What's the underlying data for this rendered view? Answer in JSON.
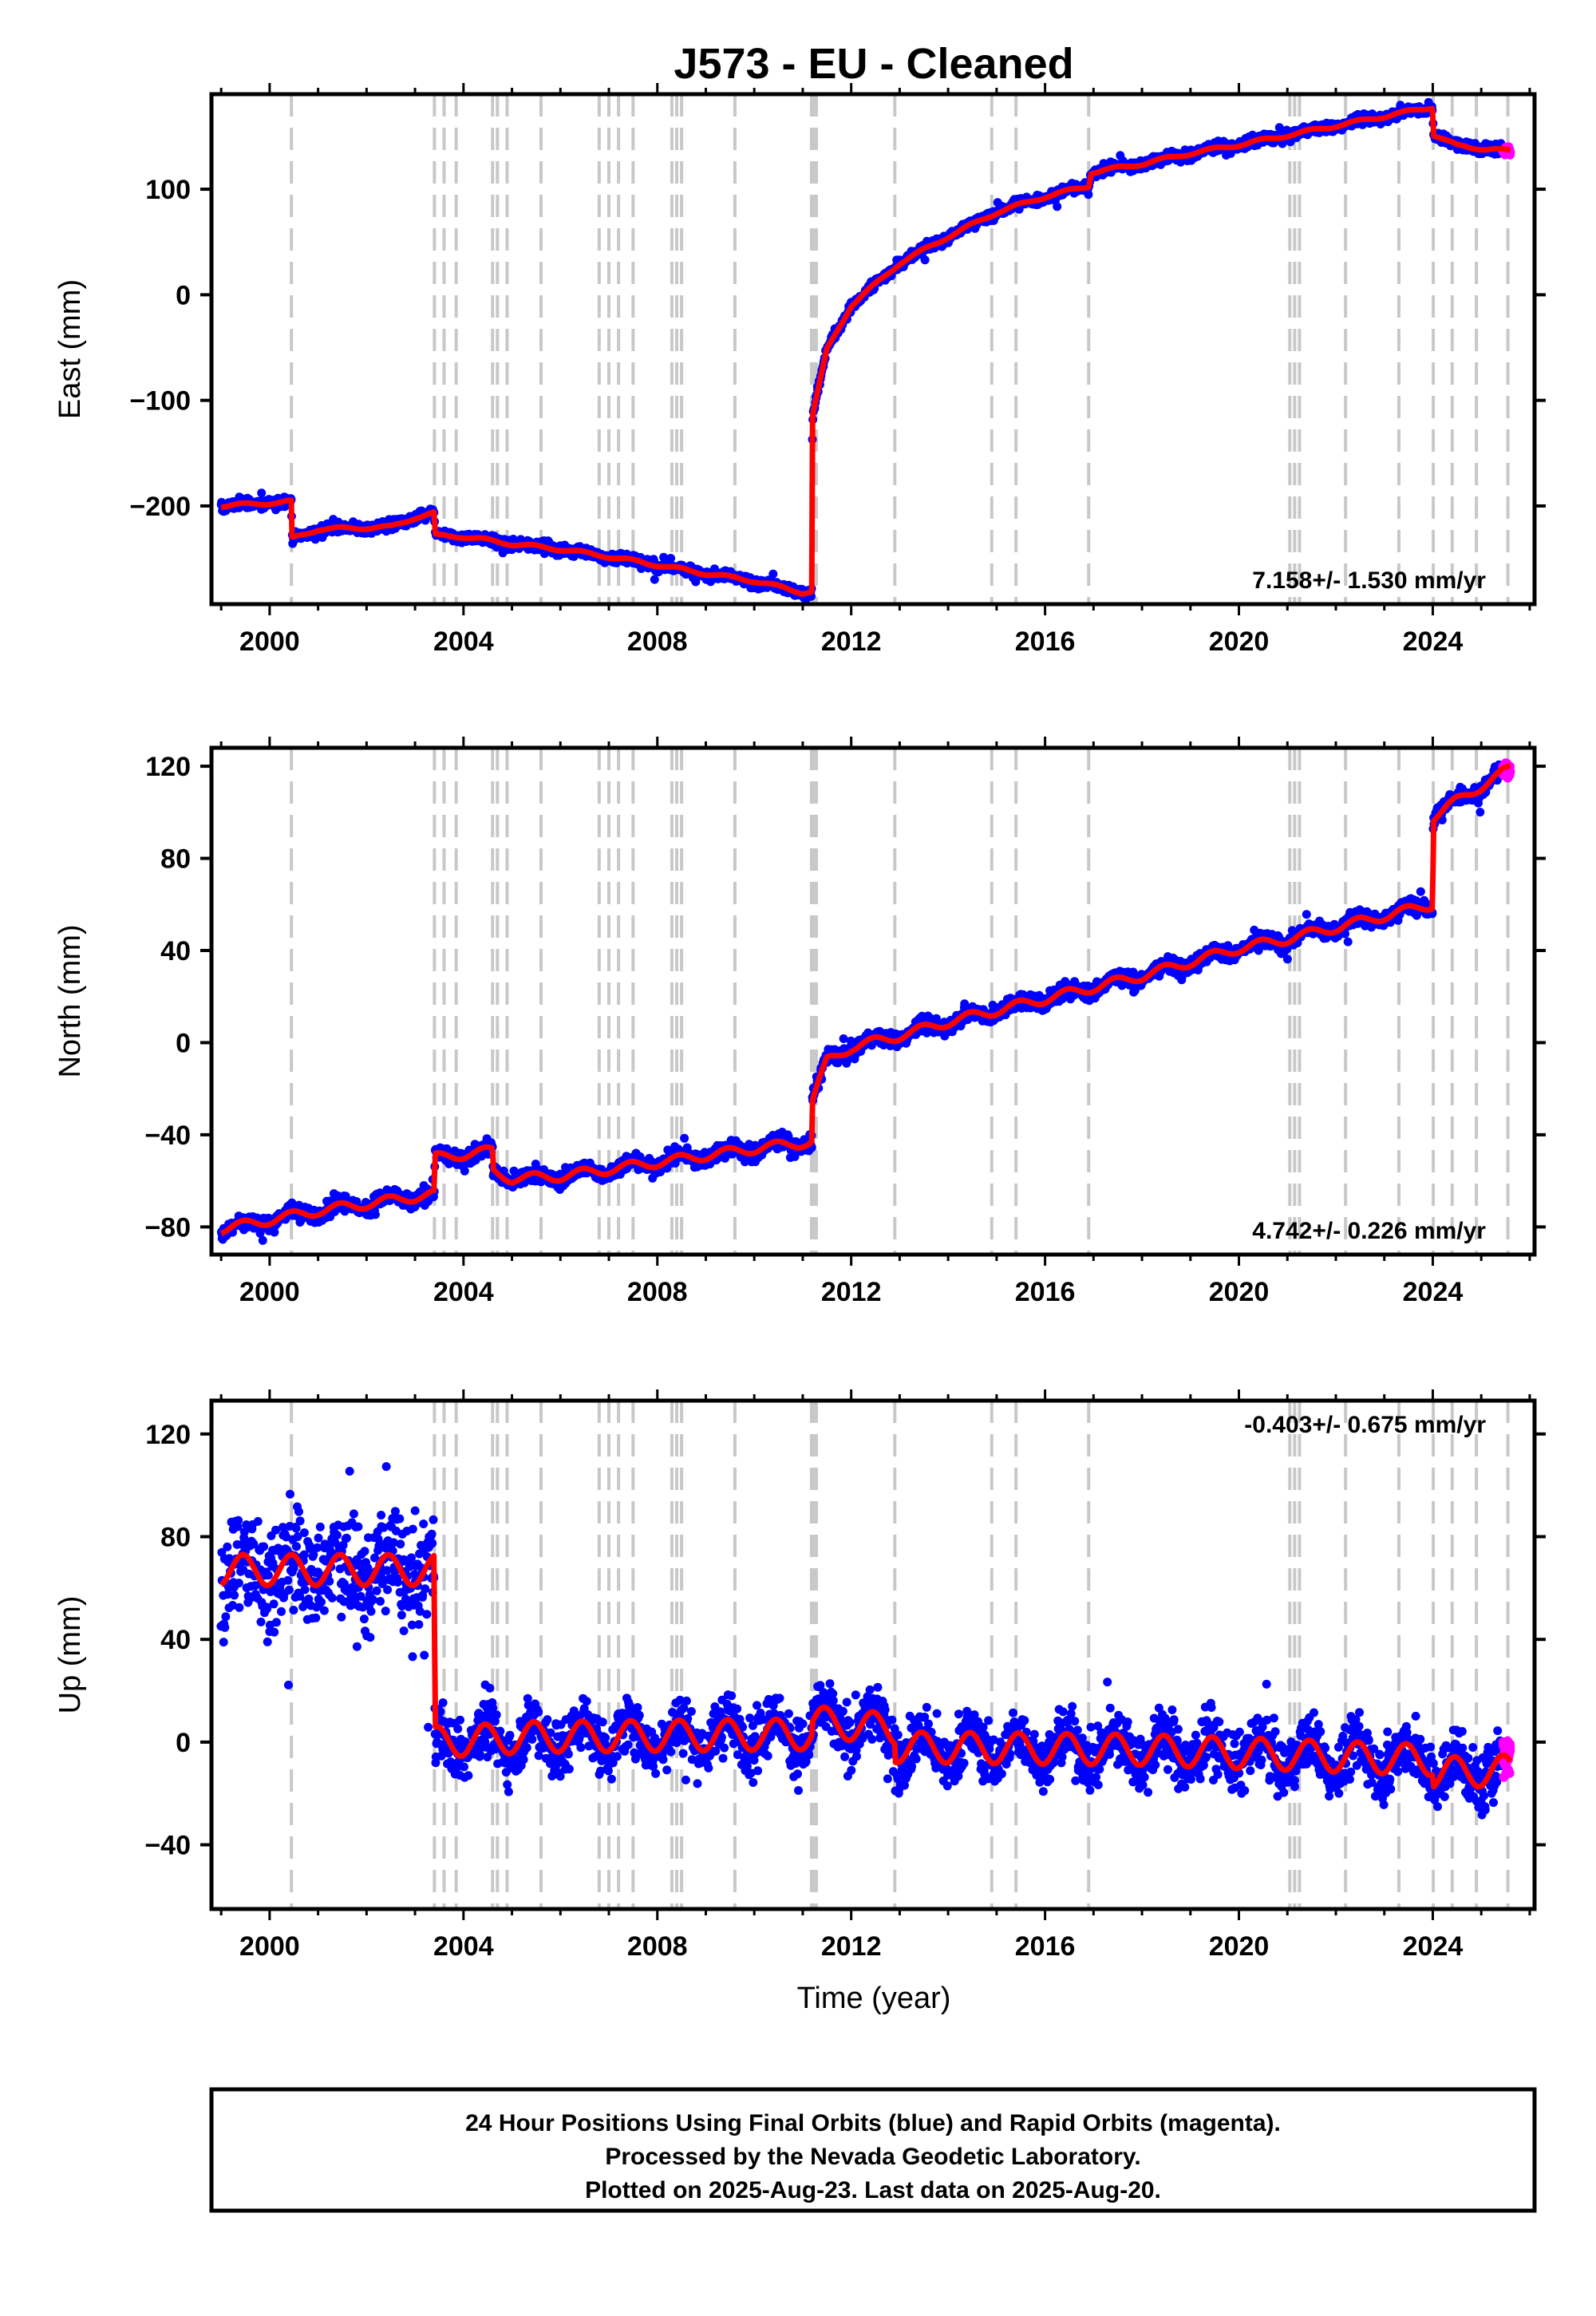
{
  "title": "J573  - EU - Cleaned",
  "colors": {
    "final_orbits": "#0000ff",
    "rapid_orbits": "#ff00ff",
    "model": "#ff0000",
    "event_lines": "#c8c8c8"
  },
  "chart_data": [
    {
      "type": "scatter",
      "component": "east",
      "ylabel": "East (mm)",
      "xlabel": "",
      "xlim": [
        1998.8,
        2026.1
      ],
      "ylim": [
        -293,
        190
      ],
      "xticks": [
        "2000",
        "2004",
        "2008",
        "2012",
        "2016",
        "2020",
        "2024"
      ],
      "yticks": [
        "−200",
        "−100",
        "0",
        "100"
      ],
      "rate_label": "7.158+/- 1.530 mm/yr",
      "model_breakpoints": [
        {
          "x": 1999.0,
          "y": -200
        },
        {
          "x": 2000.45,
          "y": -196
        },
        {
          "x": 2000.46,
          "y": -231
        },
        {
          "x": 2001.0,
          "y": -222
        },
        {
          "x": 2002.5,
          "y": -220
        },
        {
          "x": 2003.0,
          "y": -211
        },
        {
          "x": 2003.4,
          "y": -207
        },
        {
          "x": 2003.41,
          "y": -228
        },
        {
          "x": 2004.0,
          "y": -229
        },
        {
          "x": 2005.0,
          "y": -236
        },
        {
          "x": 2006.0,
          "y": -241
        },
        {
          "x": 2007.0,
          "y": -248
        },
        {
          "x": 2008.0,
          "y": -256
        },
        {
          "x": 2009.0,
          "y": -264
        },
        {
          "x": 2010.0,
          "y": -271
        },
        {
          "x": 2011.0,
          "y": -282
        },
        {
          "x": 2011.19,
          "y": -281
        },
        {
          "x": 2011.2,
          "y": -115
        },
        {
          "x": 2011.5,
          "y": -52
        },
        {
          "x": 2012.0,
          "y": -10
        },
        {
          "x": 2013.0,
          "y": 30
        },
        {
          "x": 2014.0,
          "y": 55
        },
        {
          "x": 2015.0,
          "y": 78
        },
        {
          "x": 2016.0,
          "y": 93
        },
        {
          "x": 2016.9,
          "y": 103
        },
        {
          "x": 2016.95,
          "y": 116
        },
        {
          "x": 2018.0,
          "y": 124
        },
        {
          "x": 2019.0,
          "y": 134
        },
        {
          "x": 2020.0,
          "y": 142
        },
        {
          "x": 2021.0,
          "y": 151
        },
        {
          "x": 2022.0,
          "y": 160
        },
        {
          "x": 2023.0,
          "y": 169
        },
        {
          "x": 2024.0,
          "y": 178
        },
        {
          "x": 2024.01,
          "y": 152
        },
        {
          "x": 2024.5,
          "y": 141
        },
        {
          "x": 2025.6,
          "y": 136
        }
      ],
      "seasonal_amplitude": 1.5,
      "scatter_noise": 3.5
    },
    {
      "type": "scatter",
      "component": "north",
      "ylabel": "North (mm)",
      "xlabel": "",
      "xlim": [
        1998.8,
        2026.1
      ],
      "ylim": [
        -92,
        128
      ],
      "xticks": [
        "2000",
        "2004",
        "2008",
        "2012",
        "2016",
        "2020",
        "2024"
      ],
      "yticks": [
        "−80",
        "−40",
        "0",
        "40",
        "80",
        "120"
      ],
      "rate_label": "4.742+/- 0.226 mm/yr",
      "model_breakpoints": [
        {
          "x": 1999.0,
          "y": -81
        },
        {
          "x": 2000.0,
          "y": -77
        },
        {
          "x": 2001.0,
          "y": -73
        },
        {
          "x": 2002.0,
          "y": -70
        },
        {
          "x": 2003.3,
          "y": -66
        },
        {
          "x": 2003.4,
          "y": -66
        },
        {
          "x": 2003.41,
          "y": -50
        },
        {
          "x": 2004.6,
          "y": -47
        },
        {
          "x": 2004.61,
          "y": -56
        },
        {
          "x": 2005.0,
          "y": -59
        },
        {
          "x": 2006.0,
          "y": -58
        },
        {
          "x": 2007.0,
          "y": -55
        },
        {
          "x": 2008.0,
          "y": -52
        },
        {
          "x": 2009.0,
          "y": -49
        },
        {
          "x": 2010.0,
          "y": -46
        },
        {
          "x": 2011.19,
          "y": -43
        },
        {
          "x": 2011.2,
          "y": -25
        },
        {
          "x": 2011.5,
          "y": -8
        },
        {
          "x": 2012.0,
          "y": -2
        },
        {
          "x": 2013.0,
          "y": 3
        },
        {
          "x": 2014.0,
          "y": 9
        },
        {
          "x": 2015.0,
          "y": 14
        },
        {
          "x": 2016.0,
          "y": 19
        },
        {
          "x": 2017.0,
          "y": 24
        },
        {
          "x": 2018.0,
          "y": 29
        },
        {
          "x": 2019.0,
          "y": 35
        },
        {
          "x": 2020.0,
          "y": 41
        },
        {
          "x": 2021.0,
          "y": 45
        },
        {
          "x": 2022.0,
          "y": 50
        },
        {
          "x": 2023.0,
          "y": 55
        },
        {
          "x": 2024.0,
          "y": 60
        },
        {
          "x": 2024.01,
          "y": 98
        },
        {
          "x": 2024.5,
          "y": 105
        },
        {
          "x": 2025.6,
          "y": 119
        }
      ],
      "seasonal_amplitude": 2.0,
      "scatter_noise": 2.5
    },
    {
      "type": "scatter",
      "component": "up",
      "ylabel": "Up (mm)",
      "xlabel": "Time (year)",
      "xlim": [
        1998.8,
        2026.1
      ],
      "ylim": [
        -65,
        133
      ],
      "xticks": [
        "2000",
        "2004",
        "2008",
        "2012",
        "2016",
        "2020",
        "2024"
      ],
      "yticks": [
        "−40",
        "0",
        "40",
        "80",
        "120"
      ],
      "rate_label": "-0.403+/- 0.675 mm/yr",
      "model_breakpoints": [
        {
          "x": 1999.0,
          "y": 67
        },
        {
          "x": 2003.4,
          "y": 67
        },
        {
          "x": 2003.41,
          "y": 0
        },
        {
          "x": 2005.5,
          "y": 2
        },
        {
          "x": 2011.19,
          "y": 3
        },
        {
          "x": 2011.2,
          "y": 8
        },
        {
          "x": 2012.9,
          "y": 5
        },
        {
          "x": 2012.91,
          "y": -2
        },
        {
          "x": 2018.0,
          "y": -3
        },
        {
          "x": 2024.0,
          "y": -7
        },
        {
          "x": 2024.01,
          "y": -12
        },
        {
          "x": 2025.6,
          "y": -11
        }
      ],
      "seasonal_amplitude": 6,
      "scatter_noise": 8
    }
  ],
  "event_lines": [
    2000.45,
    2003.4,
    2003.6,
    2003.85,
    2004.6,
    2004.7,
    2004.9,
    2005.6,
    2006.8,
    2007.0,
    2007.2,
    2007.5,
    2008.3,
    2008.4,
    2008.5,
    2009.6,
    2011.18,
    2011.22,
    2011.28,
    2012.9,
    2014.9,
    2015.4,
    2016.9,
    2021.05,
    2021.15,
    2021.25,
    2022.2,
    2023.3,
    2024.01,
    2024.4,
    2024.9,
    2025.55
  ],
  "caption": {
    "line1": "24 Hour Positions Using Final Orbits (blue) and Rapid Orbits (magenta).",
    "line2": "Processed by the Nevada Geodetic Laboratory.",
    "line3": "Plotted on 2025-Aug-23. Last data on 2025-Aug-20."
  }
}
